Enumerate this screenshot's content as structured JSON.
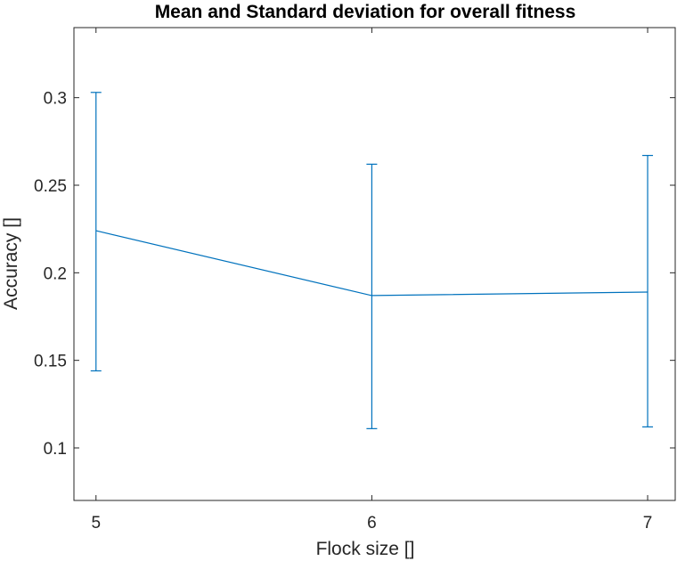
{
  "chart_data": {
    "type": "line",
    "title": "Mean and Standard deviation for overall fitness",
    "xlabel": "Flock size []",
    "ylabel": "Accuracy []",
    "x": [
      5,
      6,
      7
    ],
    "xticks": [
      "5",
      "6",
      "7"
    ],
    "xlim": [
      4.92,
      7.1
    ],
    "ylim": [
      0.07,
      0.34
    ],
    "yticks": [
      "0.1",
      "0.15",
      "0.2",
      "0.25",
      "0.3"
    ],
    "ytick_values": [
      0.1,
      0.15,
      0.2,
      0.25,
      0.3
    ],
    "grid": false,
    "series": [
      {
        "values": [
          0.224,
          0.187,
          0.189
        ],
        "lower": [
          0.144,
          0.111,
          0.112
        ],
        "upper": [
          0.303,
          0.262,
          0.267
        ],
        "color": "#0072BD"
      }
    ]
  }
}
